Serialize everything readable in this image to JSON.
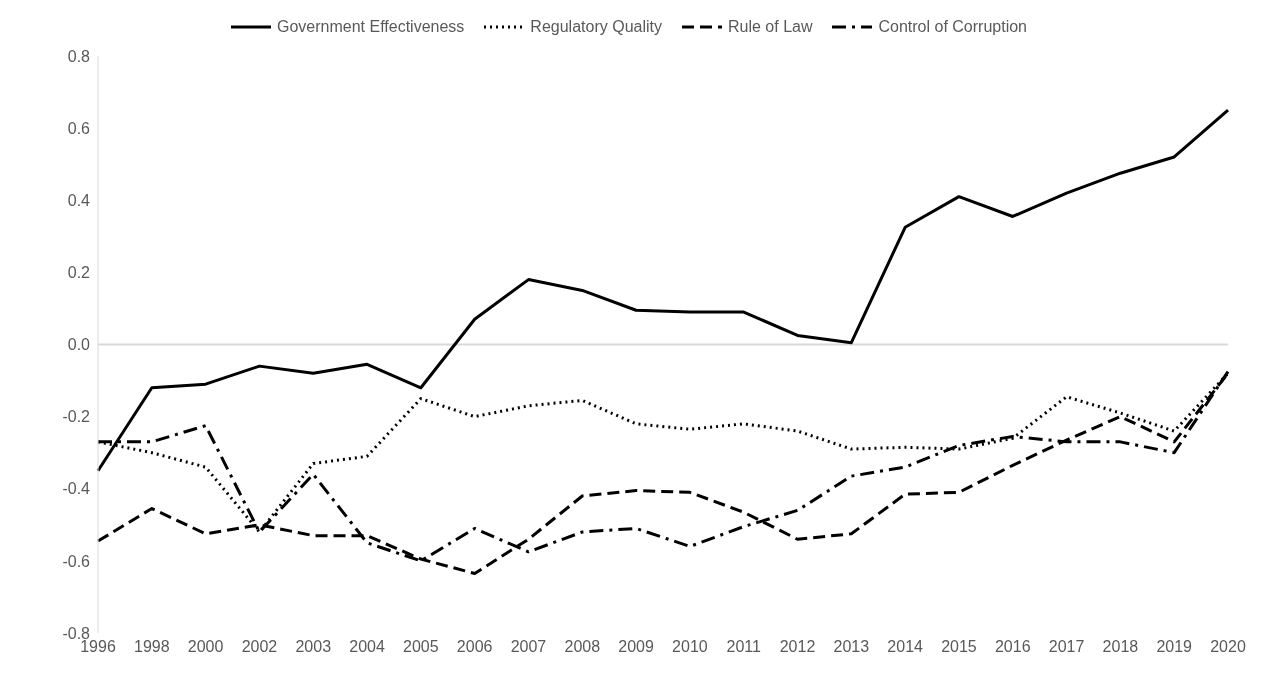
{
  "chart_data": {
    "type": "line",
    "categories": [
      "1996",
      "1998",
      "2000",
      "2002",
      "2003",
      "2004",
      "2005",
      "2006",
      "2007",
      "2008",
      "2009",
      "2010",
      "2011",
      "2012",
      "2013",
      "2014",
      "2015",
      "2016",
      "2017",
      "2018",
      "2019",
      "2020"
    ],
    "series": [
      {
        "name": "Government Effectiveness",
        "color": "#000000",
        "line_style": "solid",
        "values": [
          -0.35,
          -0.12,
          -0.11,
          -0.06,
          -0.08,
          -0.055,
          -0.12,
          0.07,
          0.18,
          0.15,
          0.095,
          0.09,
          0.09,
          0.025,
          0.005,
          0.325,
          0.41,
          0.355,
          0.42,
          0.475,
          0.52,
          0.65
        ]
      },
      {
        "name": "Regulatory Quality",
        "color": "#000000",
        "line_style": "dotted",
        "values": [
          -0.27,
          -0.3,
          -0.34,
          -0.52,
          -0.33,
          -0.31,
          -0.15,
          -0.2,
          -0.17,
          -0.155,
          -0.22,
          -0.235,
          -0.22,
          -0.24,
          -0.29,
          -0.285,
          -0.29,
          -0.26,
          -0.145,
          -0.19,
          -0.24,
          -0.08
        ]
      },
      {
        "name": "Rule of Law",
        "color": "#000000",
        "line_style": "dashed",
        "values": [
          -0.545,
          -0.455,
          -0.525,
          -0.5,
          -0.53,
          -0.53,
          -0.595,
          -0.635,
          -0.54,
          -0.42,
          -0.405,
          -0.41,
          -0.465,
          -0.54,
          -0.525,
          -0.415,
          -0.41,
          -0.335,
          -0.265,
          -0.2,
          -0.27,
          -0.08
        ]
      },
      {
        "name": "Control of Corruption",
        "color": "#000000",
        "line_style": "dashdot",
        "values": [
          -0.27,
          -0.27,
          -0.225,
          -0.52,
          -0.36,
          -0.55,
          -0.6,
          -0.51,
          -0.575,
          -0.52,
          -0.51,
          -0.56,
          -0.505,
          -0.46,
          -0.365,
          -0.34,
          -0.28,
          -0.255,
          -0.27,
          -0.27,
          -0.3,
          -0.075
        ]
      }
    ],
    "ylim": [
      -0.8,
      0.8
    ],
    "yticks": [
      -0.8,
      -0.6,
      -0.4,
      -0.2,
      {
        "value": 0,
        "label": "0.0"
      },
      0.2,
      0.4,
      0.6,
      0.8
    ],
    "ref_lines": [
      {
        "axis": "y",
        "value": 0,
        "color": "#d9d9d9"
      }
    ],
    "grid": false,
    "legend": "top",
    "marker": "none"
  }
}
